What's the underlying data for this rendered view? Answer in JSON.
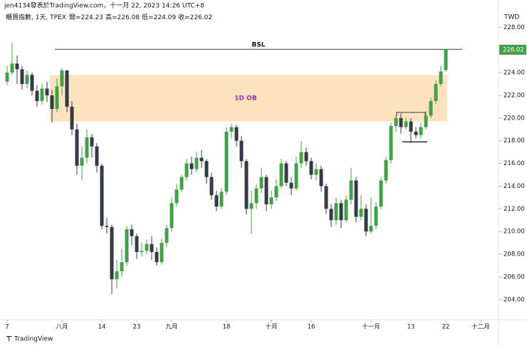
{
  "chart_data": {
    "type": "candlestick",
    "header": "jen4134發表於TradingView.com，十一月 22, 2023 14:26 UTC+8",
    "subtitle": "櫃買指數, 1天, TPEX",
    "ohlc_labels": [
      "開=",
      "高=",
      "低=",
      "收="
    ],
    "currency": "TWD",
    "brand": "TradingView",
    "up_color": "#43a047",
    "down_color": "#363a45",
    "categories": [
      "7",
      null,
      null,
      null,
      null,
      null,
      null,
      null,
      null,
      null,
      null,
      "八月",
      null,
      null,
      null,
      null,
      null,
      null,
      null,
      "14",
      null,
      null,
      null,
      null,
      null,
      null,
      "23",
      null,
      null,
      null,
      null,
      null,
      null,
      "九月",
      null,
      null,
      null,
      null,
      null,
      null,
      null,
      null,
      null,
      null,
      "18",
      null,
      null,
      null,
      null,
      null,
      null,
      null,
      null,
      "十月",
      null,
      null,
      null,
      null,
      null,
      null,
      null,
      "16",
      null,
      null,
      null,
      null,
      null,
      null,
      null,
      null,
      null,
      null,
      null,
      "十一月",
      null,
      null,
      null,
      null,
      null,
      null,
      null,
      "13",
      null,
      null,
      null,
      null,
      null,
      null,
      "22",
      null,
      null,
      null,
      null,
      null,
      null,
      "十二月"
    ],
    "open": [
      223.2,
      224.0,
      224.8,
      224.3,
      223.0,
      223.8,
      222.4,
      221.5,
      222.6,
      222.0,
      220.8,
      222.8,
      224.2,
      221.0,
      219.0,
      215.8,
      216.5,
      218.3,
      217.5,
      215.8,
      210.5,
      210.4,
      205.8,
      206.5,
      207.3,
      210.2,
      209.6,
      208.2,
      208.3,
      208.9,
      208.2,
      207.3,
      209.0,
      210.3,
      212.5,
      213.7,
      214.8,
      216.0,
      215.5,
      216.5,
      216.2,
      214.8,
      213.2,
      212.2,
      213.5,
      218.8,
      219.2,
      218.0,
      216.2,
      212.0,
      212.5,
      213.8,
      214.8,
      212.4,
      213.0,
      214.0,
      216.0,
      214.3,
      213.8,
      216.0,
      217.0,
      216.2,
      215.0,
      215.5,
      214.0,
      212.0,
      211.0,
      212.5,
      211.0,
      212.8,
      214.5,
      211.3,
      212.0,
      210.0,
      210.5,
      212.2,
      214.5,
      216.3,
      219.3,
      220.0,
      219.2,
      219.7,
      218.8,
      218.5,
      219.2,
      220.2,
      221.5,
      223.0,
      224.23,
      null,
      null,
      null,
      null,
      null,
      null,
      null
    ],
    "high": [
      224.6,
      226.6,
      225.5,
      224.6,
      224.2,
      224.0,
      222.9,
      223.0,
      223.2,
      222.5,
      223.5,
      224.4,
      224.2,
      221.5,
      219.5,
      217.5,
      219.0,
      218.6,
      217.8,
      216.0,
      211.2,
      210.6,
      207.5,
      208.5,
      210.5,
      210.6,
      209.8,
      209.0,
      209.3,
      209.6,
      208.6,
      209.4,
      210.6,
      213.0,
      214.2,
      215.0,
      216.4,
      216.6,
      217.0,
      217.2,
      216.4,
      215.2,
      213.6,
      213.8,
      219.2,
      219.5,
      219.4,
      218.4,
      216.4,
      213.6,
      214.2,
      215.6,
      215.0,
      213.6,
      214.6,
      216.4,
      216.2,
      214.8,
      216.6,
      218.0,
      217.4,
      216.5,
      216.0,
      215.8,
      214.2,
      212.4,
      213.0,
      212.8,
      213.2,
      215.6,
      214.8,
      213.2,
      212.4,
      213.0,
      212.6,
      214.8,
      216.6,
      219.6,
      220.2,
      220.4,
      220.0,
      220.0,
      219.2,
      219.6,
      220.6,
      221.8,
      223.3,
      224.6,
      226.08,
      null,
      null,
      null,
      null,
      null,
      null,
      null
    ],
    "low": [
      222.9,
      223.8,
      223.0,
      222.5,
      222.6,
      222.0,
      221.0,
      221.2,
      221.4,
      219.6,
      220.5,
      222.0,
      220.5,
      218.5,
      215.0,
      214.5,
      216.0,
      216.5,
      215.2,
      210.2,
      209.8,
      204.5,
      205.0,
      206.0,
      207.0,
      208.8,
      207.6,
      207.8,
      208.0,
      207.5,
      207.0,
      207.1,
      208.6,
      210.0,
      212.2,
      213.5,
      214.5,
      215.0,
      215.2,
      215.6,
      214.2,
      212.8,
      211.8,
      212.0,
      213.2,
      218.2,
      217.5,
      215.6,
      211.5,
      209.8,
      212.0,
      213.4,
      211.8,
      212.0,
      212.7,
      213.8,
      214.0,
      213.2,
      213.6,
      215.6,
      215.8,
      214.6,
      214.5,
      213.5,
      211.6,
      210.4,
      210.6,
      210.3,
      210.8,
      212.4,
      210.8,
      211.0,
      209.6,
      209.8,
      210.2,
      212.0,
      214.2,
      216.0,
      218.8,
      218.6,
      219.0,
      217.8,
      218.2,
      218.2,
      219.0,
      220.0,
      221.2,
      222.8,
      224.09,
      null,
      null,
      null,
      null,
      null,
      null,
      null
    ],
    "close": [
      224.0,
      224.8,
      224.3,
      223.0,
      223.8,
      222.4,
      221.5,
      222.6,
      222.0,
      220.8,
      222.8,
      224.2,
      221.0,
      219.0,
      215.8,
      216.5,
      218.3,
      217.5,
      215.8,
      210.5,
      210.4,
      205.8,
      206.5,
      207.3,
      210.2,
      209.6,
      208.2,
      208.3,
      208.9,
      208.2,
      207.3,
      209.0,
      210.3,
      212.5,
      213.7,
      214.8,
      216.0,
      215.5,
      216.5,
      216.2,
      214.8,
      213.2,
      212.2,
      213.5,
      218.8,
      219.2,
      218.0,
      216.2,
      212.0,
      212.5,
      213.8,
      214.8,
      212.4,
      213.0,
      214.0,
      216.0,
      214.3,
      213.8,
      216.0,
      217.0,
      216.2,
      215.0,
      215.5,
      214.0,
      212.0,
      211.0,
      212.5,
      211.0,
      212.8,
      214.5,
      211.3,
      212.0,
      210.0,
      210.5,
      212.2,
      214.5,
      216.3,
      219.3,
      220.0,
      219.2,
      219.7,
      218.8,
      218.5,
      219.2,
      220.2,
      221.5,
      223.0,
      224.1,
      226.02,
      null,
      null,
      null,
      null,
      null,
      null,
      null
    ],
    "ylim": [
      202.3,
      230.4
    ],
    "yticks": [
      {
        "value": 204,
        "label": "204.00"
      },
      {
        "value": 206,
        "label": "206.00"
      },
      {
        "value": 208,
        "label": "208.00"
      },
      {
        "value": 210,
        "label": "210.00"
      },
      {
        "value": 212,
        "label": "212.00"
      },
      {
        "value": 214,
        "label": "214.00"
      },
      {
        "value": 216,
        "label": "216.00"
      },
      {
        "value": 218,
        "label": "218.00"
      },
      {
        "value": 220,
        "label": "220.00"
      },
      {
        "value": 222,
        "label": "222.00"
      },
      {
        "value": 224,
        "label": "224.00"
      },
      {
        "value": 226,
        "label": "226.00"
      },
      {
        "value": 228,
        "label": "228.00"
      }
    ],
    "bsl": {
      "label": "BSL",
      "price": 226.06
    },
    "order_block": {
      "label": "1D OB",
      "top": 223.8,
      "bottom": 219.7,
      "color": "#fde3c0",
      "text_color": "#9c27b0"
    },
    "levels": [
      {
        "price": 220.5
      },
      {
        "price": 217.9
      }
    ]
  }
}
